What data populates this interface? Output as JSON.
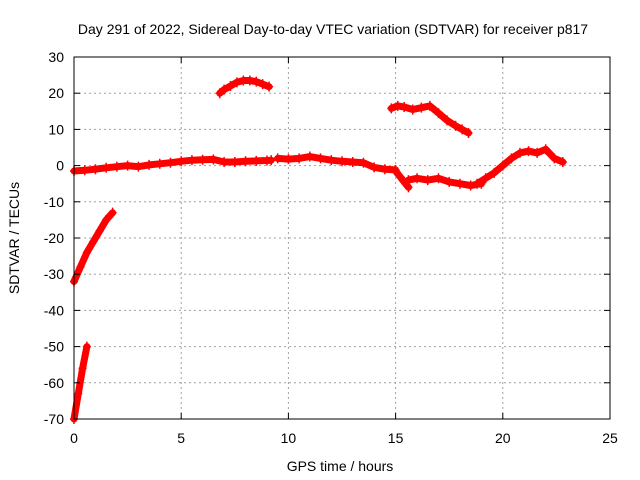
{
  "chart_data": {
    "type": "scatter",
    "title": "Day 291 of 2022, Sidereal Day-to-day VTEC variation (SDTVAR) for receiver p817",
    "xlabel": "GPS time / hours",
    "ylabel": "SDTVAR / TECUs",
    "xlim": [
      0,
      25
    ],
    "ylim": [
      -70,
      30
    ],
    "xticks": [
      0,
      5,
      10,
      15,
      20,
      25
    ],
    "yticks": [
      -70,
      -60,
      -50,
      -40,
      -30,
      -20,
      -10,
      0,
      10,
      20,
      30
    ],
    "grid": true,
    "marker_color": "#ff0000",
    "series": [
      {
        "name": "p817",
        "segments": [
          {
            "x": [
              0.0,
              0.2,
              0.4,
              0.6
            ],
            "y": [
              -70,
              -63,
              -56,
              -50
            ]
          },
          {
            "x": [
              0.0,
              0.3,
              0.6,
              0.9,
              1.2,
              1.5,
              1.8
            ],
            "y": [
              -32,
              -28,
              -24,
              -21,
              -18,
              -15,
              -13
            ]
          },
          {
            "x": [
              0.0,
              0.5,
              1.0,
              1.5,
              2.0,
              2.5,
              3.0,
              3.5,
              4.0,
              4.5,
              5.0,
              5.5,
              6.0,
              6.5,
              7.0,
              7.5,
              8.0,
              8.5,
              9.0,
              9.2
            ],
            "y": [
              -1.5,
              -1.3,
              -1.0,
              -0.6,
              -0.3,
              0.0,
              -0.3,
              0.2,
              0.5,
              0.8,
              1.2,
              1.5,
              1.6,
              1.7,
              1.0,
              1.0,
              1.2,
              1.3,
              1.4,
              1.5
            ]
          },
          {
            "x": [
              6.8,
              7.0,
              7.3,
              7.6,
              7.9,
              8.2,
              8.5,
              8.8,
              9.1
            ],
            "y": [
              20.0,
              21.0,
              22.0,
              23.0,
              23.5,
              23.5,
              23.2,
              22.5,
              21.8
            ]
          },
          {
            "x": [
              9.5,
              10.0,
              10.5,
              11.0,
              11.5,
              12.0,
              12.5,
              13.0,
              13.5,
              14.0,
              14.5,
              15.0
            ],
            "y": [
              2.0,
              1.8,
              2.0,
              2.5,
              2.0,
              1.5,
              1.2,
              1.0,
              0.8,
              -0.5,
              -1.0,
              -1.2
            ]
          },
          {
            "x": [
              15.0,
              15.2,
              15.4,
              15.6
            ],
            "y": [
              -1.5,
              -3.0,
              -4.5,
              -6.0
            ]
          },
          {
            "x": [
              15.6,
              16.0,
              16.5,
              17.0,
              17.5,
              18.0,
              18.5,
              19.0
            ],
            "y": [
              -4.0,
              -3.5,
              -4.0,
              -3.5,
              -4.5,
              -5.0,
              -5.5,
              -5.0
            ]
          },
          {
            "x": [
              14.8,
              15.1,
              15.4,
              15.8,
              16.2,
              16.6,
              17.0,
              17.4,
              17.8,
              18.1,
              18.4
            ],
            "y": [
              15.8,
              16.5,
              16.2,
              15.5,
              16.0,
              16.5,
              14.5,
              12.5,
              11.0,
              10.0,
              9.0
            ]
          },
          {
            "x": [
              18.8,
              19.2,
              19.6,
              20.0,
              20.4,
              20.8,
              21.2,
              21.6,
              22.0,
              22.4,
              22.8
            ],
            "y": [
              -5.0,
              -3.5,
              -2.0,
              0.0,
              2.0,
              3.5,
              4.0,
              3.5,
              4.5,
              2.0,
              1.0
            ]
          }
        ]
      }
    ]
  }
}
